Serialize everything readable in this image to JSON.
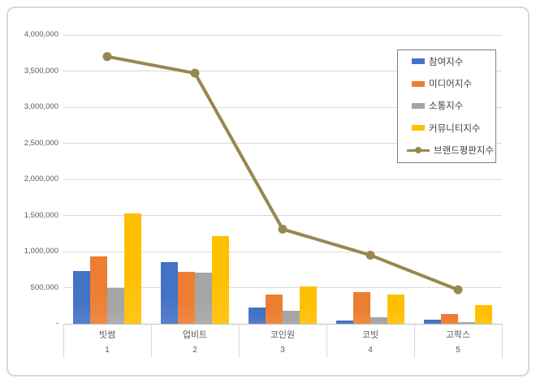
{
  "frame": {
    "background": "#ffffff",
    "border_color": "#d8d8d8"
  },
  "style_colors": {
    "gridline": "#d9d9d9",
    "axis_line": "#bfbfbf",
    "axis_text": "#595959",
    "legend_text": "#404040",
    "legend_border": "#7f7f7f"
  },
  "chart_data": {
    "type": "bar",
    "subtype": "combo-bar-line",
    "title": "",
    "xlabel": "",
    "ylabel": "",
    "grid": true,
    "legend_position": "upper-right-inside",
    "ylim": [
      0,
      4000000
    ],
    "categories": [
      "빗썸",
      "업비트",
      "코인원",
      "코빗",
      "고팍스"
    ],
    "category_numbers": [
      "1",
      "2",
      "3",
      "4",
      "5"
    ],
    "y_ticks": [
      {
        "value": 4000000,
        "label": "4,000,000"
      },
      {
        "value": 3500000,
        "label": "3,500,000"
      },
      {
        "value": 3000000,
        "label": "3,000,000"
      },
      {
        "value": 2500000,
        "label": "2,500,000"
      },
      {
        "value": 2000000,
        "label": "2,000,000"
      },
      {
        "value": 1500000,
        "label": "1,500,000"
      },
      {
        "value": 1000000,
        "label": "1,000,000"
      },
      {
        "value": 500000,
        "label": "500,000"
      },
      {
        "value": 0,
        "label": "-"
      }
    ],
    "series": [
      {
        "name": "참여지수",
        "type": "bar",
        "color": "#4472c4",
        "values": [
          730000,
          850000,
          220000,
          50000,
          60000
        ]
      },
      {
        "name": "미디어지수",
        "type": "bar",
        "color": "#ed7d31",
        "values": [
          930000,
          720000,
          400000,
          440000,
          130000
        ]
      },
      {
        "name": "소통지수",
        "type": "bar",
        "color": "#a5a5a5",
        "values": [
          500000,
          710000,
          180000,
          90000,
          20000
        ]
      },
      {
        "name": "커뮤니티지수",
        "type": "bar",
        "color": "#ffc000",
        "values": [
          1530000,
          1210000,
          520000,
          400000,
          260000
        ]
      },
      {
        "name": "브랜드평판지수",
        "type": "line",
        "color": "#96884f",
        "values": [
          3700000,
          3470000,
          1310000,
          950000,
          470000
        ]
      }
    ]
  }
}
